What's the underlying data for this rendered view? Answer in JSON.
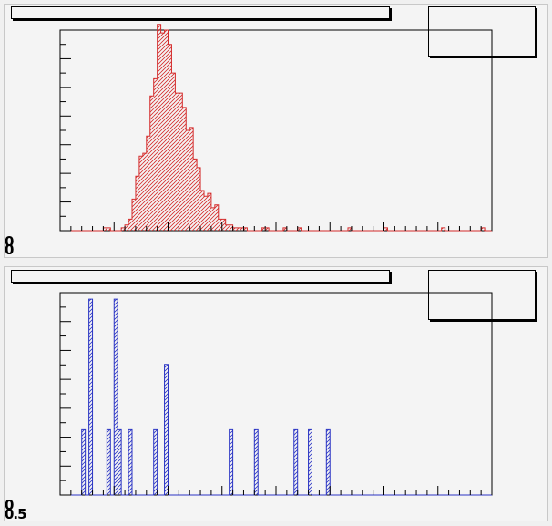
{
  "window": {
    "background": "#f0f0f0"
  },
  "pads": [
    {
      "name": "top",
      "title": "",
      "stats": "",
      "color": "#d42a2a",
      "fill_pattern": "hatch"
    },
    {
      "name": "bottom",
      "title": "",
      "stats": "",
      "color": "#2b35c4",
      "fill_pattern": "hatch"
    }
  ],
  "chart_data": [
    {
      "type": "bar",
      "title": "",
      "xlabel": "",
      "ylabel": "",
      "series": [
        {
          "values": [
            0,
            0,
            0,
            0,
            0,
            0,
            0,
            0,
            0,
            0,
            0,
            0,
            1,
            1,
            0,
            0,
            0,
            1,
            2,
            4,
            11,
            19,
            26,
            27,
            33,
            47,
            53,
            72,
            69,
            70,
            65,
            55,
            48,
            48,
            43,
            35,
            36,
            25,
            22,
            14,
            12,
            13,
            8,
            9,
            4,
            4,
            2,
            2,
            1,
            1,
            1,
            1,
            0,
            0,
            0,
            0,
            1,
            1,
            0,
            0,
            0,
            0,
            1,
            0,
            0,
            0,
            1,
            0,
            0,
            0,
            0,
            0,
            0,
            0,
            0,
            0,
            0,
            0,
            0,
            0,
            1,
            0,
            0,
            0,
            0,
            0,
            0,
            0,
            0,
            0,
            1,
            0,
            0,
            0,
            0,
            0,
            0,
            0,
            0,
            0,
            0,
            0,
            0,
            0,
            0,
            0,
            1,
            0,
            0,
            0,
            0,
            0,
            0,
            0,
            0,
            0,
            0,
            1,
            0,
            0
          ]
        }
      ],
      "bins": 120,
      "ylim": [
        0,
        70
      ],
      "yticklabels": [
        "0",
        "0"
      ],
      "grid": false,
      "legend": "top-right"
    },
    {
      "type": "bar",
      "title": "",
      "xlabel": "",
      "ylabel": "",
      "series": [
        {
          "values": [
            0,
            0,
            0,
            0,
            0,
            0,
            1,
            0,
            3,
            0,
            0,
            0,
            0,
            1,
            0,
            3,
            1,
            0,
            0,
            1,
            0,
            0,
            0,
            0,
            0,
            0,
            1,
            0,
            0,
            2,
            0,
            0,
            0,
            0,
            0,
            0,
            0,
            0,
            0,
            0,
            0,
            0,
            0,
            0,
            0,
            0,
            0,
            1,
            0,
            0,
            0,
            0,
            0,
            0,
            1,
            0,
            0,
            0,
            0,
            0,
            0,
            0,
            0,
            0,
            0,
            1,
            0,
            0,
            0,
            1,
            0,
            0,
            0,
            0,
            1,
            0,
            0,
            0,
            0,
            0,
            0,
            0,
            0,
            0,
            0,
            0,
            0,
            0,
            0,
            0,
            0,
            0,
            0,
            0,
            0,
            0,
            0,
            0,
            0,
            0,
            0,
            0,
            0,
            0,
            0,
            0,
            0,
            0,
            0,
            0,
            0,
            0,
            0,
            0,
            0,
            0,
            0,
            0,
            0,
            0
          ]
        }
      ],
      "bins": 120,
      "ylim": [
        0,
        3.1
      ],
      "yticklabels": [
        "0",
        "0.5"
      ],
      "grid": false,
      "legend": "top-right"
    }
  ]
}
